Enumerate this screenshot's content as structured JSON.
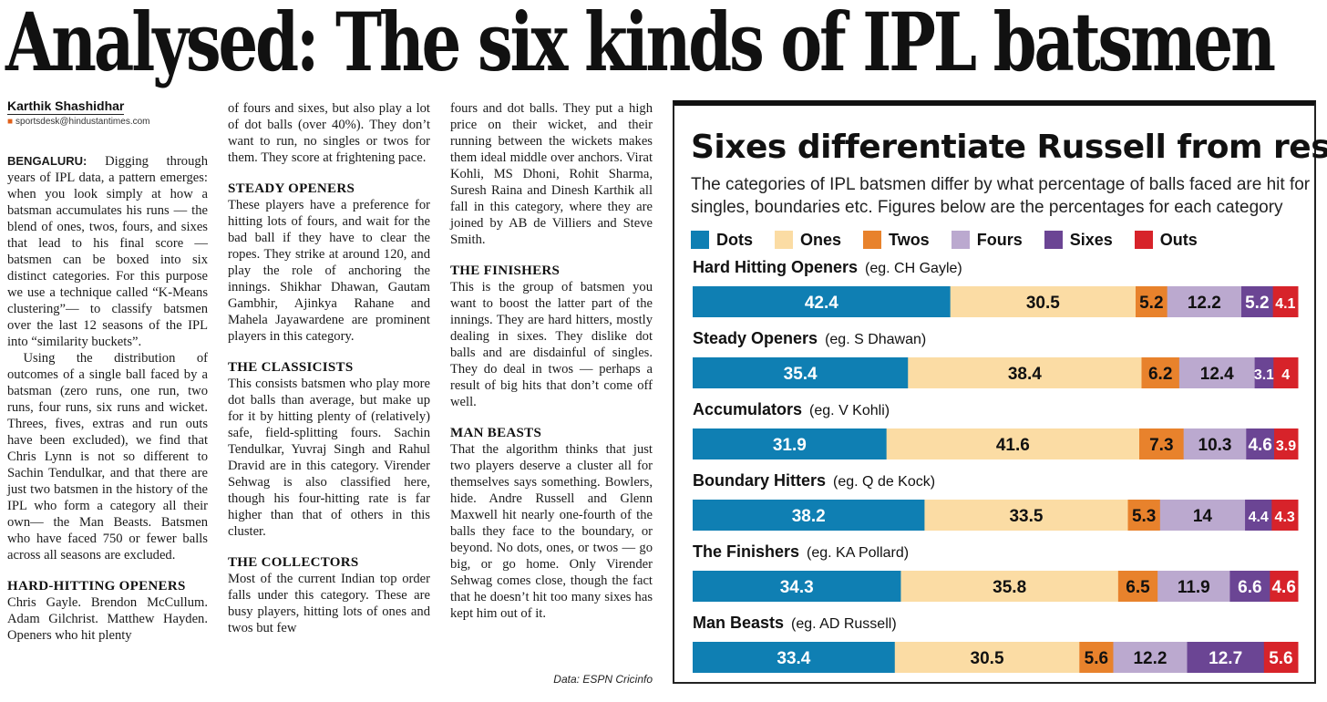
{
  "headline": "Analysed: The six kinds of IPL batsmen",
  "byline": {
    "author": "Karthik Shashidhar",
    "email": "sportsdesk@hindustantimes.com"
  },
  "article": {
    "dateline": "BENGALURU:",
    "p1": "Digging through years of IPL data, a pattern emerges: when you look simply at how a batsman accumulates his runs — the blend of ones, twos, fours, and sixes that lead to his final score — batsmen can be boxed into six distinct categories. For this purpose we use a technique called “K-Means clustering”— to classify batsmen over the last 12 seasons of the IPL into “similarity buckets”.",
    "p2": "Using the distribution of outcomes of a single ball faced by a batsman (zero runs, one run, two runs, four runs, six runs and wicket. Threes, fives, extras and run outs have been excluded), we find that Chris Lynn is not so different to Sachin Tendulkar, and that there are just two batsmen in the history of the IPL who form a category all their own— the Man Beasts. Batsmen who have faced 750 or fewer balls across all seasons are excluded.",
    "h_hard": "HARD-HITTING OPENERS",
    "p_hard_1": "Chris Gayle. Brendon McCullum. Adam Gilchrist. Matthew Hayden. Openers who hit plenty",
    "p_hard_2": "of fours and sixes, but also play a lot of dot balls (over 40%). They don’t want to run, no singles or twos for them. They score at frightening pace.",
    "h_steady": "STEADY OPENERS",
    "p_steady": "These players have a preference for hitting lots of fours, and wait for the bad ball if they have to clear the ropes. They strike at around 120, and play the role of anchoring the innings. Shikhar Dhawan, Gautam Gambhir, Ajinkya Rahane and Mahela Jayawardene are prominent players in this category.",
    "h_classic": "THE CLASSICISTS",
    "p_classic": "This consists batsmen who play more dot balls than average, but make up for it by hitting plenty of (relatively) safe, field-splitting fours. Sachin Tendulkar, Yuvraj Singh and Rahul Dravid are in this category. Virender Sehwag is also classified here, though his four-hitting rate is far higher than that of others in this cluster.",
    "h_collect": "THE COLLECTORS",
    "p_collect_1": "Most of the current Indian top order falls under this category. These are busy players, hitting lots of ones and twos but few",
    "p_collect_2": "fours and dot balls. They put a high price on their wicket, and their running between the wickets makes them ideal middle over anchors. Virat Kohli, MS Dhoni, Rohit Sharma, Suresh Raina and Dinesh Karthik all fall in this category, where they are joined by AB de Villiers and Steve Smith.",
    "h_finish": "THE FINISHERS",
    "p_finish": "This is the group of batsmen you want to boost the latter part of the innings. They are hard hitters, mostly dealing in sixes. They dislike dot balls and are disdainful of singles. They do deal in twos — perhaps a result of big hits that don’t come off well.",
    "h_beast": "MAN BEASTS",
    "p_beast": "That the algorithm thinks that just two players deserve a cluster all for themselves says something. Bowlers, hide. Andre Russell and Glenn Maxwell hit nearly one-fourth of the balls they face to the boundary, or beyond. No dots, ones, or twos — go big, or go home. Only Virender Sehwag comes close, though the fact that he doesn’t hit too many sixes has kept him out of it.",
    "credit": "Data: ESPN Cricinfo"
  },
  "chart_data": {
    "type": "bar",
    "stacked": true,
    "orientation": "horizontal",
    "title": "Sixes differentiate Russell from rest",
    "subtitle": "The categories of IPL batsmen differ by what percentage of balls faced are hit for singles, boundaries etc. Figures below are the percentages for each category",
    "legend_position": "top",
    "categories": [
      {
        "name": "Hard Hitting Openers",
        "example": "(eg. CH Gayle)"
      },
      {
        "name": "Steady Openers",
        "example": "(eg. S Dhawan)"
      },
      {
        "name": "Accumulators",
        "example": "(eg. V Kohli)"
      },
      {
        "name": "Boundary Hitters",
        "example": "(eg. Q de Kock)"
      },
      {
        "name": "The Finishers",
        "example": "(eg. KA Pollard)"
      },
      {
        "name": "Man Beasts",
        "example": "(eg. AD Russell)"
      }
    ],
    "series": [
      {
        "name": "Dots",
        "color": "#0f7fb3",
        "label_color": "#ffffff",
        "values": [
          42.4,
          35.4,
          31.9,
          38.2,
          34.3,
          33.4
        ]
      },
      {
        "name": "Ones",
        "color": "#fbdca4",
        "label_color": "#111111",
        "values": [
          30.5,
          38.4,
          41.6,
          33.5,
          35.8,
          30.5
        ]
      },
      {
        "name": "Twos",
        "color": "#e8822c",
        "label_color": "#111111",
        "values": [
          5.2,
          6.2,
          7.3,
          5.3,
          6.5,
          5.6
        ]
      },
      {
        "name": "Fours",
        "color": "#bba9cf",
        "label_color": "#111111",
        "values": [
          12.2,
          12.4,
          10.3,
          14,
          11.9,
          12.2
        ]
      },
      {
        "name": "Sixes",
        "color": "#6b4594",
        "label_color": "#ffffff",
        "values": [
          5.2,
          3.1,
          4.6,
          4.4,
          6.6,
          12.7
        ]
      },
      {
        "name": "Outs",
        "color": "#d7232a",
        "label_color": "#ffffff",
        "values": [
          4.1,
          4,
          3.9,
          4.3,
          4.6,
          5.6
        ]
      }
    ]
  }
}
